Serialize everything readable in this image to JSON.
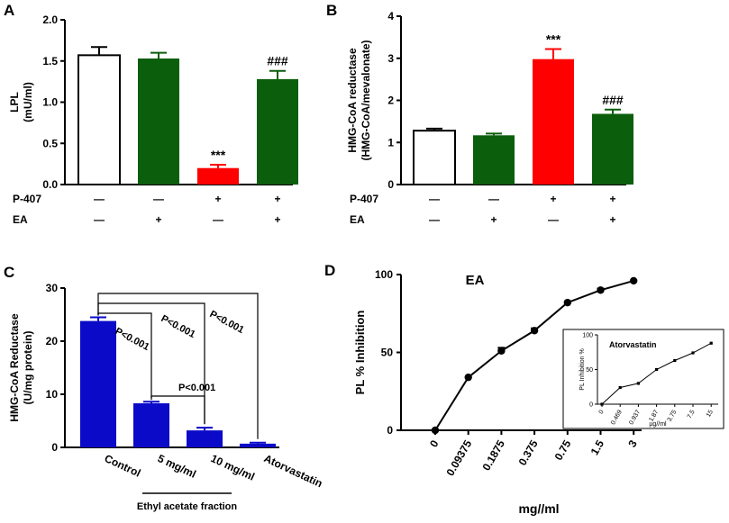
{
  "chart_data": [
    {
      "panel": "A",
      "type": "bar",
      "ylabel": [
        "LPL",
        "(mU/ml)"
      ],
      "ylim": [
        0,
        2.0
      ],
      "yticks": [
        "0.0",
        "0.5",
        "1.0",
        "1.5",
        "2.0"
      ],
      "ytick_values": [
        0,
        0.5,
        1.0,
        1.5,
        2.0
      ],
      "values": [
        1.57,
        1.53,
        0.2,
        1.28
      ],
      "errors": [
        0.1,
        0.07,
        0.04,
        0.1
      ],
      "colors": [
        "#ffffff",
        "#0b5e0b",
        "#ff0000",
        "#0b5e0b"
      ],
      "annotations": [
        "",
        "",
        "***",
        "###"
      ],
      "factor_rows": [
        {
          "label": "P-407",
          "signs": [
            "—",
            "—",
            "+",
            "+"
          ]
        },
        {
          "label": "EA",
          "signs": [
            "—",
            "+",
            "—",
            "+"
          ]
        }
      ]
    },
    {
      "panel": "B",
      "type": "bar",
      "ylabel": [
        "HMG-CoA reductase",
        "(HMG-CoA/mevalonate)"
      ],
      "ylim": [
        0,
        4
      ],
      "yticks": [
        "0",
        "1",
        "2",
        "3",
        "4"
      ],
      "ytick_values": [
        0,
        1,
        2,
        3,
        4
      ],
      "values": [
        1.28,
        1.17,
        2.98,
        1.68
      ],
      "errors": [
        0.05,
        0.04,
        0.24,
        0.1
      ],
      "colors": [
        "#ffffff",
        "#0b5e0b",
        "#ff0000",
        "#0b5e0b"
      ],
      "annotations": [
        "",
        "",
        "***",
        "###"
      ],
      "factor_rows": [
        {
          "label": "P-407",
          "signs": [
            "—",
            "—",
            "+",
            "+"
          ]
        },
        {
          "label": "EA",
          "signs": [
            "—",
            "+",
            "—",
            "+"
          ]
        }
      ]
    },
    {
      "panel": "C",
      "type": "bar",
      "ylabel": [
        "HMG-CoA Reductase",
        "(U/mg protein)"
      ],
      "ylim": [
        0,
        30
      ],
      "yticks": [
        "0",
        "10",
        "20",
        "30"
      ],
      "ytick_values": [
        0,
        10,
        20,
        30
      ],
      "categories": [
        "Control",
        "5 mg/ml",
        "10 mg/ml",
        "Atorvastatin"
      ],
      "values": [
        23.8,
        8.3,
        3.2,
        0.7
      ],
      "errors": [
        0.7,
        0.3,
        0.5,
        0.2
      ],
      "color": "#0a0ac8",
      "group_label": "Ethyl acetate fraction",
      "comparisons": [
        {
          "from": 0,
          "to": 1,
          "label": "P<0.001"
        },
        {
          "from": 0,
          "to": 2,
          "label": "P<0.001"
        },
        {
          "from": 0,
          "to": 3,
          "label": "P<0.001"
        },
        {
          "from": 1,
          "to": 2,
          "label": "P<0.001"
        }
      ]
    },
    {
      "panel": "D",
      "type": "line",
      "title": "EA",
      "xlabel": "mg//ml",
      "ylabel": "PL % Inhibition",
      "ylim": [
        0,
        100
      ],
      "yticks": [
        "0",
        "50",
        "100"
      ],
      "ytick_values": [
        0,
        50,
        100
      ],
      "x": [
        "0",
        "0.09375",
        "0.1875",
        "0.375",
        "0.75",
        "1.5",
        "3"
      ],
      "values": [
        0,
        34,
        51,
        64,
        82,
        90,
        96
      ],
      "errors": [
        0,
        0,
        2,
        1.5,
        0,
        1,
        0
      ],
      "inset": {
        "title": "Atorvastatin",
        "xlabel": "µg//ml",
        "ylabel": "PL Inhibition %",
        "x": [
          "0",
          "0.469",
          "0.937",
          "1.87",
          "3.75",
          "7.5",
          "15"
        ],
        "values": [
          0,
          24,
          30,
          50,
          63,
          74,
          88
        ],
        "yticks": [
          "0",
          "50",
          "100"
        ],
        "ytick_values": [
          0,
          50,
          100
        ],
        "ylim": [
          0,
          100
        ]
      }
    }
  ]
}
